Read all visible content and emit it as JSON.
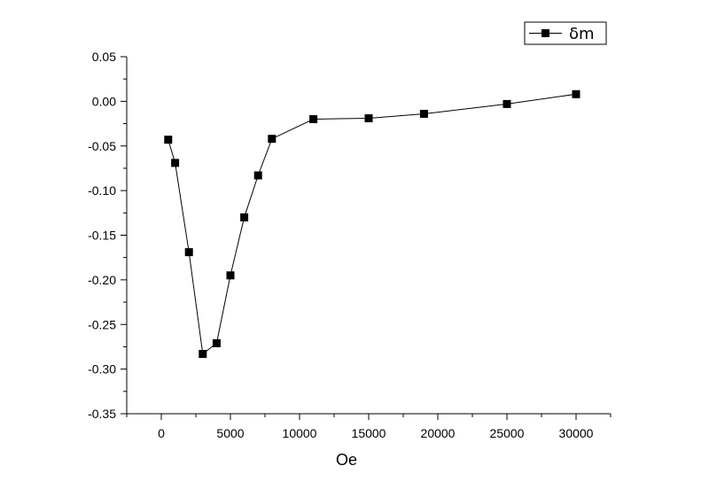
{
  "chart_data": {
    "type": "line",
    "title": "",
    "xlabel": "Oe",
    "ylabel": "",
    "xlim": [
      -2500,
      32500
    ],
    "ylim": [
      -0.35,
      0.05
    ],
    "x_ticks": [
      0,
      5000,
      10000,
      15000,
      20000,
      25000,
      30000
    ],
    "x_tick_labels": [
      "0",
      "5000",
      "10000",
      "15000",
      "20000",
      "25000",
      "30000"
    ],
    "y_ticks": [
      0.05,
      0.0,
      -0.05,
      -0.1,
      -0.15,
      -0.2,
      -0.25,
      -0.3,
      -0.35
    ],
    "y_tick_labels": [
      "0.05",
      "0.00",
      "-0.05",
      "-0.10",
      "-0.15",
      "-0.20",
      "-0.25",
      "-0.30",
      "-0.35"
    ],
    "grid": false,
    "legend_position": "top-right",
    "series": [
      {
        "name": "δm",
        "color": "#000000",
        "marker": "square",
        "x": [
          500,
          1000,
          2000,
          3000,
          4000,
          5000,
          6000,
          7000,
          8000,
          11000,
          15000,
          19000,
          25000,
          30000
        ],
        "y": [
          -0.043,
          -0.069,
          -0.169,
          -0.283,
          -0.271,
          -0.195,
          -0.13,
          -0.083,
          -0.042,
          -0.02,
          -0.019,
          -0.014,
          -0.003,
          0.008
        ]
      }
    ]
  }
}
